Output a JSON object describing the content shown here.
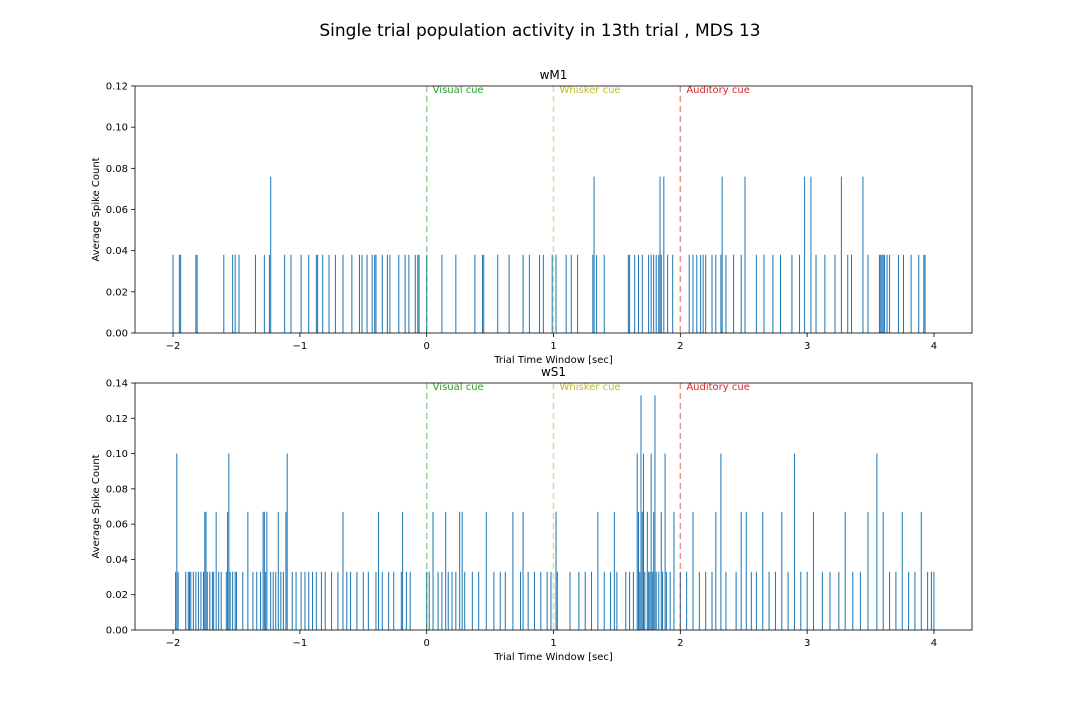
{
  "figure": {
    "suptitle": "Single trial population activity in 13th trial , MDS 13"
  },
  "colors": {
    "bar": "#1f77b4",
    "visual": "#2ca02c",
    "whisker": "#bcbd22",
    "auditory": "#d62728"
  },
  "chart_data": [
    {
      "type": "bar",
      "title": "wM1",
      "xlabel": "Trial Time Window [sec]",
      "ylabel": "Average Spike Count",
      "xlim": [
        -2.3,
        4.3
      ],
      "ylim": [
        0,
        0.12
      ],
      "xticks": [
        -2,
        -1,
        0,
        1,
        2,
        3,
        4
      ],
      "yticks": [
        0.0,
        0.02,
        0.04,
        0.06,
        0.08,
        0.1,
        0.12
      ],
      "ytick_labels": [
        "0.00",
        "0.02",
        "0.04",
        "0.06",
        "0.08",
        "0.10",
        "0.12"
      ],
      "cues": [
        {
          "x": 0,
          "label": "Visual cue",
          "color": "visual"
        },
        {
          "x": 1,
          "label": "Whisker cue",
          "color": "whisker"
        },
        {
          "x": 2,
          "label": "Auditory cue",
          "color": "auditory"
        }
      ],
      "bars": [
        [
          -2.0,
          0.038
        ],
        [
          -1.95,
          0.038
        ],
        [
          -1.94,
          0.038
        ],
        [
          -1.82,
          0.038
        ],
        [
          -1.81,
          0.038
        ],
        [
          -1.6,
          0.038
        ],
        [
          -1.53,
          0.038
        ],
        [
          -1.51,
          0.038
        ],
        [
          -1.48,
          0.038
        ],
        [
          -1.35,
          0.038
        ],
        [
          -1.28,
          0.038
        ],
        [
          -1.24,
          0.038
        ],
        [
          -1.23,
          0.076
        ],
        [
          -1.12,
          0.038
        ],
        [
          -1.07,
          0.038
        ],
        [
          -0.99,
          0.038
        ],
        [
          -0.93,
          0.038
        ],
        [
          -0.87,
          0.038
        ],
        [
          -0.86,
          0.038
        ],
        [
          -0.82,
          0.038
        ],
        [
          -0.77,
          0.038
        ],
        [
          -0.72,
          0.038
        ],
        [
          -0.66,
          0.038
        ],
        [
          -0.59,
          0.038
        ],
        [
          -0.53,
          0.038
        ],
        [
          -0.51,
          0.038
        ],
        [
          -0.47,
          0.038
        ],
        [
          -0.43,
          0.038
        ],
        [
          -0.41,
          0.038
        ],
        [
          -0.4,
          0.038
        ],
        [
          -0.35,
          0.038
        ],
        [
          -0.31,
          0.038
        ],
        [
          -0.29,
          0.038
        ],
        [
          -0.22,
          0.038
        ],
        [
          -0.17,
          0.038
        ],
        [
          -0.14,
          0.038
        ],
        [
          -0.09,
          0.038
        ],
        [
          -0.07,
          0.038
        ],
        [
          -0.06,
          0.038
        ],
        [
          0.0,
          0.038
        ],
        [
          0.12,
          0.038
        ],
        [
          0.23,
          0.038
        ],
        [
          0.38,
          0.038
        ],
        [
          0.44,
          0.038
        ],
        [
          0.45,
          0.038
        ],
        [
          0.56,
          0.038
        ],
        [
          0.65,
          0.038
        ],
        [
          0.76,
          0.038
        ],
        [
          0.81,
          0.038
        ],
        [
          0.89,
          0.038
        ],
        [
          0.92,
          0.038
        ],
        [
          0.99,
          0.038
        ],
        [
          1.02,
          0.038
        ],
        [
          1.1,
          0.038
        ],
        [
          1.14,
          0.038
        ],
        [
          1.19,
          0.038
        ],
        [
          1.31,
          0.038
        ],
        [
          1.32,
          0.076
        ],
        [
          1.34,
          0.038
        ],
        [
          1.4,
          0.038
        ],
        [
          1.59,
          0.038
        ],
        [
          1.6,
          0.038
        ],
        [
          1.64,
          0.038
        ],
        [
          1.67,
          0.038
        ],
        [
          1.7,
          0.038
        ],
        [
          1.75,
          0.038
        ],
        [
          1.77,
          0.038
        ],
        [
          1.79,
          0.038
        ],
        [
          1.81,
          0.038
        ],
        [
          1.83,
          0.038
        ],
        [
          1.84,
          0.076
        ],
        [
          1.85,
          0.038
        ],
        [
          1.87,
          0.076
        ],
        [
          1.9,
          0.038
        ],
        [
          1.94,
          0.038
        ],
        [
          2.07,
          0.038
        ],
        [
          2.1,
          0.038
        ],
        [
          2.13,
          0.038
        ],
        [
          2.16,
          0.038
        ],
        [
          2.18,
          0.038
        ],
        [
          2.2,
          0.038
        ],
        [
          2.25,
          0.038
        ],
        [
          2.28,
          0.038
        ],
        [
          2.32,
          0.038
        ],
        [
          2.33,
          0.076
        ],
        [
          2.36,
          0.038
        ],
        [
          2.42,
          0.038
        ],
        [
          2.48,
          0.038
        ],
        [
          2.51,
          0.076
        ],
        [
          2.6,
          0.038
        ],
        [
          2.66,
          0.038
        ],
        [
          2.73,
          0.038
        ],
        [
          2.79,
          0.038
        ],
        [
          2.88,
          0.038
        ],
        [
          2.94,
          0.038
        ],
        [
          2.98,
          0.076
        ],
        [
          3.03,
          0.076
        ],
        [
          3.07,
          0.038
        ],
        [
          3.14,
          0.038
        ],
        [
          3.22,
          0.038
        ],
        [
          3.27,
          0.076
        ],
        [
          3.32,
          0.038
        ],
        [
          3.35,
          0.038
        ],
        [
          3.44,
          0.076
        ],
        [
          3.48,
          0.038
        ],
        [
          3.57,
          0.038
        ],
        [
          3.58,
          0.038
        ],
        [
          3.59,
          0.038
        ],
        [
          3.6,
          0.038
        ],
        [
          3.61,
          0.038
        ],
        [
          3.63,
          0.038
        ],
        [
          3.65,
          0.038
        ],
        [
          3.72,
          0.038
        ],
        [
          3.76,
          0.038
        ],
        [
          3.82,
          0.038
        ],
        [
          3.88,
          0.038
        ],
        [
          3.92,
          0.038
        ],
        [
          3.93,
          0.038
        ]
      ]
    },
    {
      "type": "bar",
      "title": "wS1",
      "xlabel": "Trial Time Window [sec]",
      "ylabel": "Average Spike Count",
      "xlim": [
        -2.3,
        4.3
      ],
      "ylim": [
        0,
        0.14
      ],
      "xticks": [
        -2,
        -1,
        0,
        1,
        2,
        3,
        4
      ],
      "yticks": [
        0.0,
        0.02,
        0.04,
        0.06,
        0.08,
        0.1,
        0.12,
        0.14
      ],
      "ytick_labels": [
        "0.00",
        "0.02",
        "0.04",
        "0.06",
        "0.08",
        "0.10",
        "0.12",
        "0.14"
      ],
      "cues": [
        {
          "x": 0,
          "label": "Visual cue",
          "color": "visual"
        },
        {
          "x": 1,
          "label": "Whisker cue",
          "color": "whisker"
        },
        {
          "x": 2,
          "label": "Auditory cue",
          "color": "auditory"
        }
      ],
      "bars": [
        [
          -1.98,
          0.033
        ],
        [
          -1.97,
          0.1
        ],
        [
          -1.96,
          0.033
        ],
        [
          -1.9,
          0.033
        ],
        [
          -1.88,
          0.033
        ],
        [
          -1.87,
          0.033
        ],
        [
          -1.86,
          0.033
        ],
        [
          -1.84,
          0.033
        ],
        [
          -1.82,
          0.033
        ],
        [
          -1.8,
          0.033
        ],
        [
          -1.78,
          0.033
        ],
        [
          -1.76,
          0.033
        ],
        [
          -1.75,
          0.067
        ],
        [
          -1.74,
          0.067
        ],
        [
          -1.73,
          0.033
        ],
        [
          -1.71,
          0.033
        ],
        [
          -1.69,
          0.033
        ],
        [
          -1.68,
          0.033
        ],
        [
          -1.66,
          0.067
        ],
        [
          -1.64,
          0.033
        ],
        [
          -1.62,
          0.033
        ],
        [
          -1.58,
          0.033
        ],
        [
          -1.57,
          0.067
        ],
        [
          -1.56,
          0.1
        ],
        [
          -1.55,
          0.033
        ],
        [
          -1.53,
          0.033
        ],
        [
          -1.51,
          0.033
        ],
        [
          -1.5,
          0.033
        ],
        [
          -1.45,
          0.033
        ],
        [
          -1.41,
          0.067
        ],
        [
          -1.37,
          0.033
        ],
        [
          -1.34,
          0.033
        ],
        [
          -1.31,
          0.033
        ],
        [
          -1.29,
          0.067
        ],
        [
          -1.28,
          0.067
        ],
        [
          -1.27,
          0.033
        ],
        [
          -1.26,
          0.067
        ],
        [
          -1.23,
          0.033
        ],
        [
          -1.21,
          0.033
        ],
        [
          -1.19,
          0.033
        ],
        [
          -1.17,
          0.067
        ],
        [
          -1.15,
          0.033
        ],
        [
          -1.13,
          0.033
        ],
        [
          -1.11,
          0.067
        ],
        [
          -1.1,
          0.1
        ],
        [
          -1.06,
          0.033
        ],
        [
          -1.03,
          0.033
        ],
        [
          -0.99,
          0.033
        ],
        [
          -0.96,
          0.033
        ],
        [
          -0.93,
          0.033
        ],
        [
          -0.9,
          0.033
        ],
        [
          -0.87,
          0.033
        ],
        [
          -0.83,
          0.033
        ],
        [
          -0.8,
          0.033
        ],
        [
          -0.75,
          0.033
        ],
        [
          -0.7,
          0.033
        ],
        [
          -0.66,
          0.067
        ],
        [
          -0.63,
          0.033
        ],
        [
          -0.6,
          0.033
        ],
        [
          -0.55,
          0.033
        ],
        [
          -0.5,
          0.033
        ],
        [
          -0.46,
          0.033
        ],
        [
          -0.4,
          0.033
        ],
        [
          -0.38,
          0.067
        ],
        [
          -0.35,
          0.033
        ],
        [
          -0.3,
          0.033
        ],
        [
          -0.26,
          0.033
        ],
        [
          -0.2,
          0.033
        ],
        [
          -0.19,
          0.067
        ],
        [
          -0.16,
          0.033
        ],
        [
          -0.13,
          0.033
        ],
        [
          0.0,
          0.033
        ],
        [
          0.02,
          0.033
        ],
        [
          0.05,
          0.067
        ],
        [
          0.09,
          0.033
        ],
        [
          0.12,
          0.033
        ],
        [
          0.15,
          0.067
        ],
        [
          0.17,
          0.033
        ],
        [
          0.2,
          0.033
        ],
        [
          0.23,
          0.033
        ],
        [
          0.26,
          0.067
        ],
        [
          0.28,
          0.067
        ],
        [
          0.3,
          0.033
        ],
        [
          0.36,
          0.033
        ],
        [
          0.41,
          0.033
        ],
        [
          0.47,
          0.067
        ],
        [
          0.53,
          0.033
        ],
        [
          0.58,
          0.033
        ],
        [
          0.62,
          0.033
        ],
        [
          0.68,
          0.067
        ],
        [
          0.74,
          0.033
        ],
        [
          0.76,
          0.067
        ],
        [
          0.8,
          0.033
        ],
        [
          0.85,
          0.033
        ],
        [
          0.9,
          0.033
        ],
        [
          0.95,
          0.033
        ],
        [
          0.98,
          0.033
        ],
        [
          1.02,
          0.067
        ],
        [
          1.03,
          0.033
        ],
        [
          1.13,
          0.033
        ],
        [
          1.2,
          0.033
        ],
        [
          1.25,
          0.033
        ],
        [
          1.3,
          0.033
        ],
        [
          1.35,
          0.067
        ],
        [
          1.4,
          0.033
        ],
        [
          1.45,
          0.033
        ],
        [
          1.48,
          0.067
        ],
        [
          1.5,
          0.033
        ],
        [
          1.57,
          0.033
        ],
        [
          1.6,
          0.033
        ],
        [
          1.63,
          0.033
        ],
        [
          1.66,
          0.1
        ],
        [
          1.67,
          0.067
        ],
        [
          1.68,
          0.033
        ],
        [
          1.69,
          0.133
        ],
        [
          1.7,
          0.067
        ],
        [
          1.71,
          0.1
        ],
        [
          1.72,
          0.033
        ],
        [
          1.74,
          0.067
        ],
        [
          1.75,
          0.033
        ],
        [
          1.76,
          0.033
        ],
        [
          1.77,
          0.1
        ],
        [
          1.78,
          0.033
        ],
        [
          1.79,
          0.067
        ],
        [
          1.8,
          0.133
        ],
        [
          1.81,
          0.033
        ],
        [
          1.83,
          0.033
        ],
        [
          1.85,
          0.067
        ],
        [
          1.86,
          0.033
        ],
        [
          1.88,
          0.1
        ],
        [
          1.89,
          0.033
        ],
        [
          1.92,
          0.033
        ],
        [
          1.95,
          0.067
        ],
        [
          2.0,
          0.033
        ],
        [
          2.05,
          0.033
        ],
        [
          2.1,
          0.067
        ],
        [
          2.15,
          0.033
        ],
        [
          2.2,
          0.033
        ],
        [
          2.25,
          0.033
        ],
        [
          2.28,
          0.067
        ],
        [
          2.32,
          0.1
        ],
        [
          2.36,
          0.033
        ],
        [
          2.44,
          0.033
        ],
        [
          2.48,
          0.067
        ],
        [
          2.52,
          0.067
        ],
        [
          2.56,
          0.033
        ],
        [
          2.6,
          0.033
        ],
        [
          2.65,
          0.067
        ],
        [
          2.7,
          0.033
        ],
        [
          2.75,
          0.033
        ],
        [
          2.8,
          0.067
        ],
        [
          2.85,
          0.033
        ],
        [
          2.9,
          0.1
        ],
        [
          2.95,
          0.033
        ],
        [
          3.0,
          0.033
        ],
        [
          3.05,
          0.067
        ],
        [
          3.12,
          0.033
        ],
        [
          3.18,
          0.033
        ],
        [
          3.25,
          0.033
        ],
        [
          3.3,
          0.067
        ],
        [
          3.36,
          0.033
        ],
        [
          3.42,
          0.033
        ],
        [
          3.48,
          0.067
        ],
        [
          3.55,
          0.1
        ],
        [
          3.6,
          0.067
        ],
        [
          3.65,
          0.033
        ],
        [
          3.7,
          0.033
        ],
        [
          3.75,
          0.067
        ],
        [
          3.8,
          0.033
        ],
        [
          3.85,
          0.033
        ],
        [
          3.9,
          0.067
        ],
        [
          3.95,
          0.033
        ],
        [
          3.98,
          0.033
        ],
        [
          4.0,
          0.033
        ]
      ]
    }
  ]
}
